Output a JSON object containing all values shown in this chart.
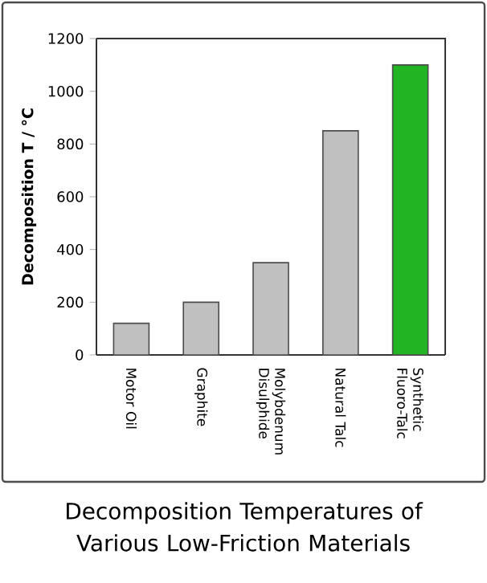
{
  "chart_data": {
    "type": "bar",
    "title": "Decomposition Temperatures of Various Low-Friction Materials",
    "ylabel": "Decomposition T / °C",
    "categories": [
      "Motor Oil",
      "Graphite",
      "Molybdenum Disulphide",
      "Natural Talc",
      "Synthetic Fluoro-Talc"
    ],
    "values": [
      120,
      200,
      350,
      850,
      1100
    ],
    "colors": [
      "#c0c0c0",
      "#c0c0c0",
      "#c0c0c0",
      "#c0c0c0",
      "#22b422"
    ],
    "ylim": [
      0,
      1200
    ],
    "yticks": [
      0,
      200,
      400,
      600,
      800,
      1000,
      1200
    ],
    "grid": false,
    "legend": false
  }
}
